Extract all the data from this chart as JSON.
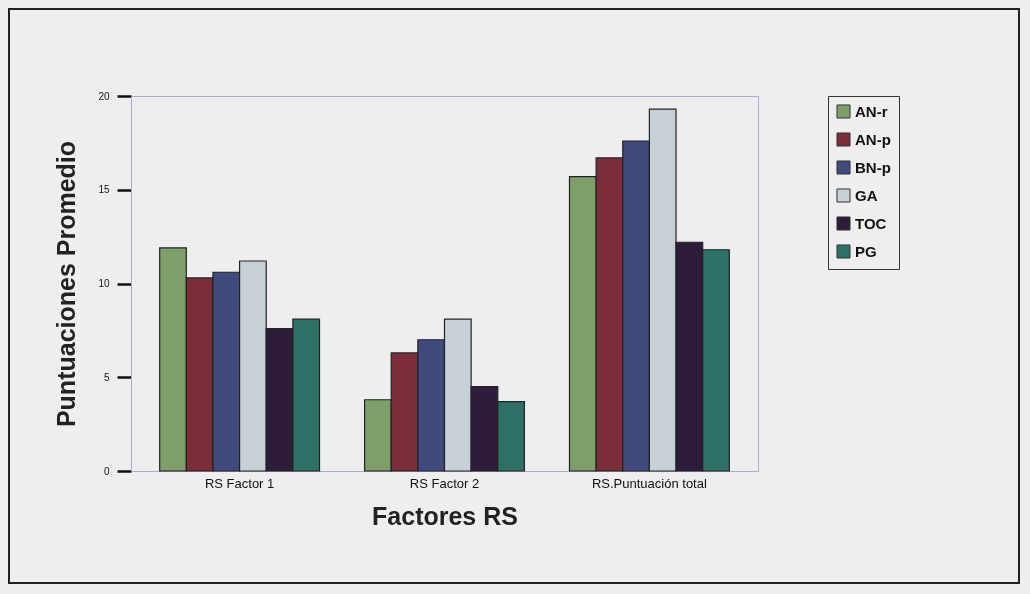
{
  "chart_data": {
    "type": "bar",
    "xlabel": "Factores RS",
    "ylabel": "Puntuaciones Promedio",
    "categories": [
      "RS Factor 1",
      "RS Factor 2",
      "RS.Puntuación total"
    ],
    "series": [
      {
        "name": "AN-r",
        "color": "#7f9f6a",
        "values": [
          11.9,
          3.8,
          15.7
        ]
      },
      {
        "name": "AN-p",
        "color": "#7b2e3a",
        "values": [
          10.3,
          6.3,
          16.7
        ]
      },
      {
        "name": "BN-p",
        "color": "#3f4a7d",
        "values": [
          10.6,
          7.0,
          17.6
        ]
      },
      {
        "name": "GA",
        "color": "#c7d0d6",
        "values": [
          11.2,
          8.1,
          19.3
        ]
      },
      {
        "name": "TOC",
        "color": "#2e1d3a",
        "values": [
          7.6,
          4.5,
          12.2
        ]
      },
      {
        "name": "PG",
        "color": "#2f7066",
        "values": [
          8.1,
          3.7,
          11.8
        ]
      }
    ],
    "ylim": [
      0,
      20
    ],
    "yticks": [
      0,
      5,
      10,
      15,
      20
    ],
    "grid": false,
    "legend": "right"
  }
}
